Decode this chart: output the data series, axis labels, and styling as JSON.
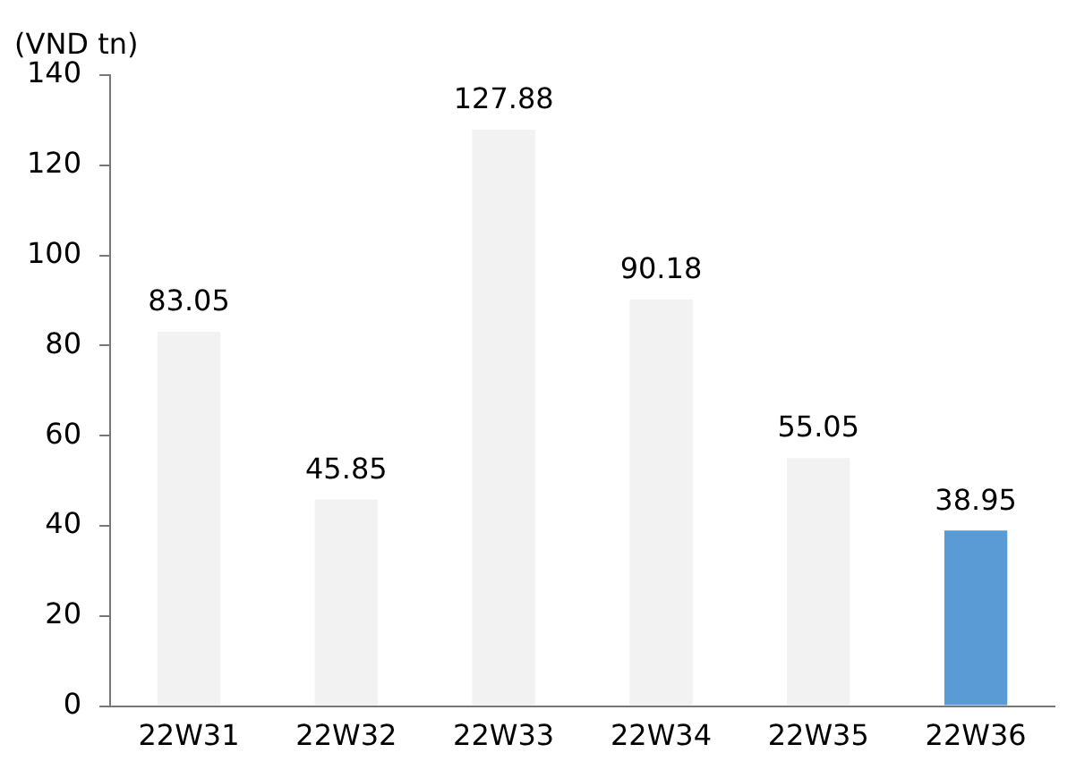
{
  "chart_data": {
    "type": "bar",
    "ylabel": "(VND tn)",
    "categories": [
      "22W31",
      "22W32",
      "22W33",
      "22W34",
      "22W35",
      "22W36"
    ],
    "values": [
      83.05,
      45.85,
      127.88,
      90.18,
      55.05,
      38.95
    ],
    "colors": [
      "#f2f2f2",
      "#f2f2f2",
      "#f2f2f2",
      "#f2f2f2",
      "#f2f2f2",
      "#5b9bd5"
    ],
    "ylim": [
      0,
      140
    ],
    "yticks": [
      0,
      20,
      40,
      60,
      80,
      100,
      120,
      140
    ],
    "grid": false,
    "legend": false,
    "data_labels": true
  }
}
